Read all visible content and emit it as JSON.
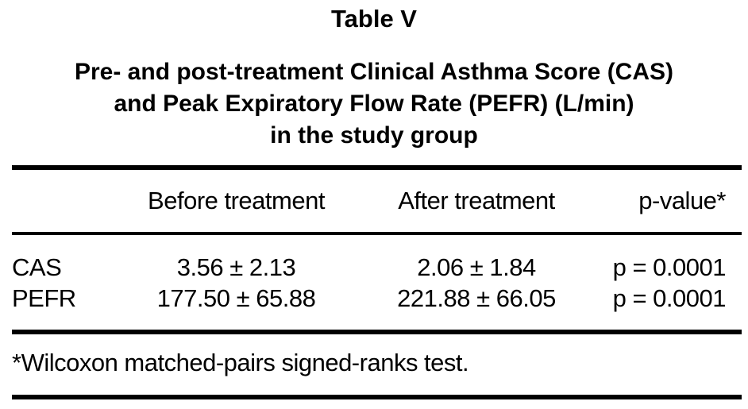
{
  "doc": {
    "title": "Table V",
    "subtitle_lines": [
      "Pre- and post-treatment Clinical Asthma Score (CAS)",
      "and Peak Expiratory Flow Rate (PEFR) (L/min)",
      "in the study group"
    ]
  },
  "table": {
    "headers": [
      "Before treatment",
      "After treatment",
      "p-value*"
    ],
    "rows": [
      {
        "label": "CAS",
        "before": "3.56 ± 2.13",
        "after": "2.06 ± 1.84",
        "p": "p = 0.0001"
      },
      {
        "label": "PEFR",
        "before": "177.50 ± 65.88",
        "after": "221.88 ± 66.05",
        "p": "p = 0.0001"
      }
    ],
    "footnote": "*Wilcoxon matched-pairs signed-ranks test."
  },
  "chart_data": {
    "type": "table",
    "title": "Table V",
    "subtitle": "Pre- and post-treatment Clinical Asthma Score (CAS) and Peak Expiratory Flow Rate (PEFR) (L/min) in the study group",
    "columns": [
      "",
      "Before treatment",
      "After treatment",
      "p-value*"
    ],
    "rows": [
      [
        "CAS",
        "3.56 ± 2.13",
        "2.06 ± 1.84",
        "p = 0.0001"
      ],
      [
        "PEFR",
        "177.50 ± 65.88",
        "221.88 ± 66.05",
        "p = 0.0001"
      ]
    ],
    "footnote": "*Wilcoxon matched-pairs signed-ranks test."
  },
  "colors": {
    "text": "#000000",
    "background": "#ffffff",
    "rule": "#000000"
  }
}
